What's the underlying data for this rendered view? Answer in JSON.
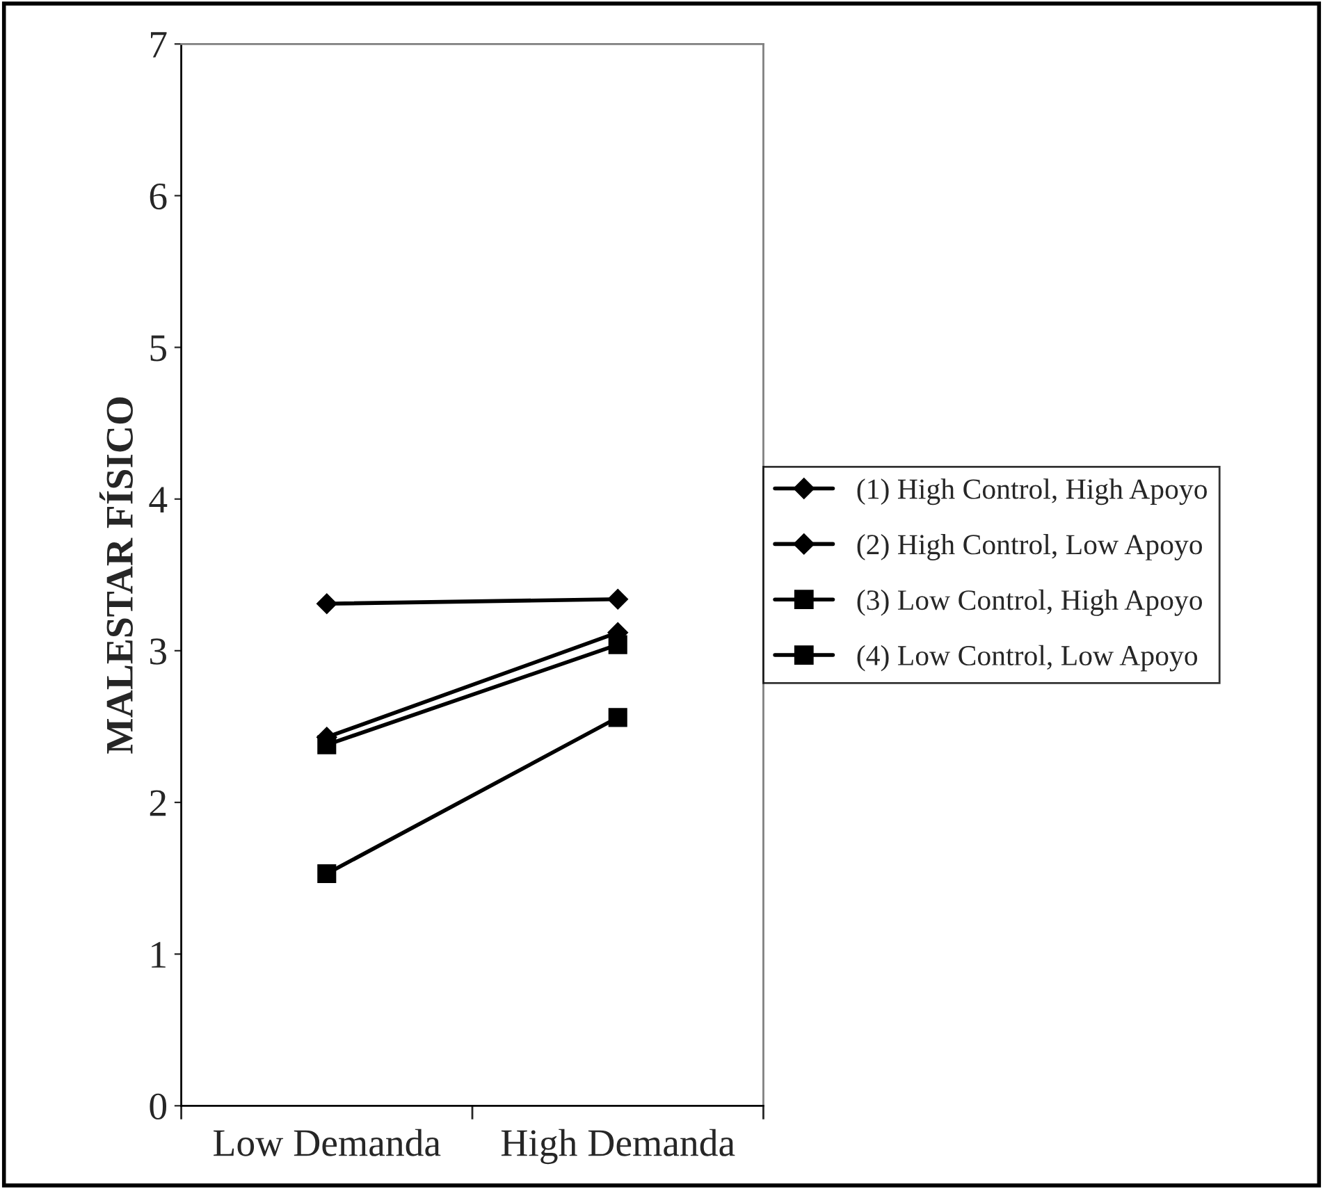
{
  "chart_data": {
    "type": "line",
    "ylabel": "MALESTAR FÍSICO",
    "categories": [
      "Low Demanda",
      "High Demanda"
    ],
    "series": [
      {
        "name": "(1) High Control, High Apoyo",
        "color": "#000000",
        "marker": "diamond",
        "values": [
          2.43,
          3.12
        ]
      },
      {
        "name": "(2) High Control, Low Apoyo",
        "color": "#000000",
        "marker": "diamond",
        "values": [
          3.31,
          3.34
        ]
      },
      {
        "name": "(3) Low Control, High Apoyo",
        "color": "#000000",
        "marker": "square",
        "values": [
          1.53,
          2.56
        ]
      },
      {
        "name": "(4) Low Control, Low Apoyo",
        "color": "#000000",
        "marker": "square",
        "values": [
          2.38,
          3.04
        ]
      }
    ],
    "ylim": [
      0,
      7
    ],
    "yticks": [
      0,
      1,
      2,
      3,
      4,
      5,
      6,
      7
    ],
    "grid": false,
    "legend": "right"
  }
}
